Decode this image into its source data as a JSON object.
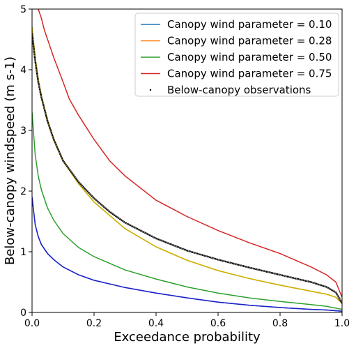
{
  "chart_data": {
    "type": "line",
    "xlabel": "Exceedance probability",
    "ylabel": "Below-canopy windspeed (m s-1)",
    "xlim": [
      0.0,
      1.0
    ],
    "ylim": [
      0,
      5
    ],
    "x_ticks": [
      "0.0",
      "0.2",
      "0.4",
      "0.6",
      "0.8",
      "1.0"
    ],
    "y_ticks": [
      "0",
      "1",
      "2",
      "3",
      "4",
      "5"
    ],
    "grid": false,
    "legend_position": "top-right",
    "series": [
      {
        "name": "Canopy wind parameter = 0.10",
        "color": "#1f77b4",
        "x": [
          0.0,
          0.01,
          0.02,
          0.03,
          0.05,
          0.07,
          0.1,
          0.15,
          0.2,
          0.3,
          0.4,
          0.5,
          0.6,
          0.7,
          0.8,
          0.9,
          0.95,
          1.0
        ],
        "y": [
          1.9,
          1.45,
          1.25,
          1.12,
          0.97,
          0.87,
          0.75,
          0.62,
          0.53,
          0.41,
          0.32,
          0.24,
          0.17,
          0.12,
          0.08,
          0.05,
          0.04,
          0.02
        ]
      },
      {
        "name": "Canopy wind parameter = 0.28",
        "color": "#ff7f0e",
        "x": [
          0.0,
          0.01,
          0.02,
          0.03,
          0.05,
          0.07,
          0.1,
          0.15,
          0.2,
          0.3,
          0.4,
          0.5,
          0.6,
          0.7,
          0.8,
          0.9,
          0.95,
          0.98,
          1.0
        ],
        "y": [
          4.7,
          4.2,
          3.85,
          3.55,
          3.15,
          2.85,
          2.5,
          2.12,
          1.82,
          1.38,
          1.08,
          0.86,
          0.69,
          0.56,
          0.45,
          0.35,
          0.3,
          0.25,
          0.15
        ]
      },
      {
        "name": "Canopy wind parameter = 0.50",
        "color": "#2ca02c",
        "x": [
          0.0,
          0.01,
          0.02,
          0.03,
          0.05,
          0.07,
          0.1,
          0.15,
          0.2,
          0.3,
          0.4,
          0.5,
          0.6,
          0.7,
          0.8,
          0.9,
          0.95,
          1.0
        ],
        "y": [
          3.3,
          2.6,
          2.25,
          2.02,
          1.72,
          1.52,
          1.3,
          1.07,
          0.92,
          0.7,
          0.55,
          0.42,
          0.32,
          0.24,
          0.18,
          0.13,
          0.1,
          0.05
        ]
      },
      {
        "name": "Canopy wind parameter = 0.75",
        "color": "#d62728",
        "x": [
          0.02,
          0.03,
          0.04,
          0.05,
          0.07,
          0.1,
          0.12,
          0.15,
          0.2,
          0.25,
          0.3,
          0.4,
          0.5,
          0.6,
          0.7,
          0.8,
          0.9,
          0.95,
          0.98,
          1.0
        ],
        "y": [
          5.0,
          4.85,
          4.65,
          4.5,
          4.2,
          3.8,
          3.52,
          3.25,
          2.85,
          2.5,
          2.25,
          1.85,
          1.58,
          1.35,
          1.15,
          0.97,
          0.75,
          0.62,
          0.5,
          0.25
        ]
      },
      {
        "name": "Below-canopy observations",
        "color": "#000000",
        "marker": "point",
        "x": [
          0.0,
          0.01,
          0.02,
          0.03,
          0.05,
          0.07,
          0.1,
          0.15,
          0.2,
          0.25,
          0.3,
          0.4,
          0.5,
          0.6,
          0.7,
          0.8,
          0.9,
          0.95,
          0.98,
          1.0
        ],
        "y": [
          4.6,
          4.15,
          3.8,
          3.55,
          3.15,
          2.85,
          2.5,
          2.15,
          1.88,
          1.66,
          1.48,
          1.22,
          1.02,
          0.87,
          0.74,
          0.62,
          0.5,
          0.42,
          0.33,
          0.15
        ]
      }
    ]
  },
  "layout_colors": {
    "overlay_line": "#c8b400"
  }
}
